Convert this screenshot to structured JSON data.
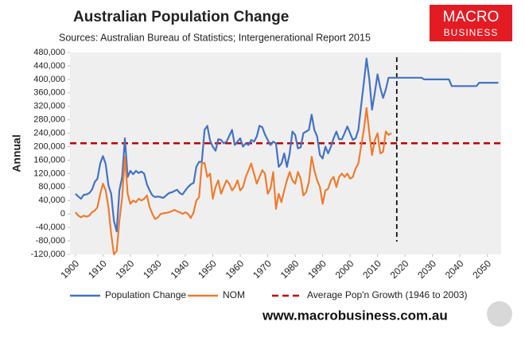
{
  "chart_data": {
    "type": "line",
    "title": "Australian Population Change",
    "subtitle": "Sources: Australian Bureau of Statistics; Intergenerational Report 2015",
    "y_label": "Annual",
    "logo": {
      "line1": "MACRO",
      "line2": "BUSINESS"
    },
    "website": "www.macrobusiness.com.au",
    "x": [
      1900,
      1901,
      1902,
      1903,
      1904,
      1905,
      1906,
      1907,
      1908,
      1909,
      1910,
      1911,
      1912,
      1913,
      1914,
      1915,
      1916,
      1917,
      1918,
      1919,
      1920,
      1921,
      1922,
      1923,
      1924,
      1925,
      1926,
      1927,
      1928,
      1929,
      1930,
      1931,
      1932,
      1933,
      1934,
      1935,
      1936,
      1937,
      1938,
      1939,
      1940,
      1941,
      1942,
      1943,
      1944,
      1945,
      1946,
      1947,
      1948,
      1949,
      1950,
      1951,
      1952,
      1953,
      1954,
      1955,
      1956,
      1957,
      1958,
      1959,
      1960,
      1961,
      1962,
      1963,
      1964,
      1965,
      1966,
      1967,
      1968,
      1969,
      1970,
      1971,
      1972,
      1973,
      1974,
      1975,
      1976,
      1977,
      1978,
      1979,
      1980,
      1981,
      1982,
      1983,
      1984,
      1985,
      1986,
      1987,
      1988,
      1989,
      1990,
      1991,
      1992,
      1993,
      1994,
      1995,
      1996,
      1997,
      1998,
      1999,
      2000,
      2001,
      2002,
      2003,
      2004,
      2005,
      2006,
      2007,
      2008,
      2009,
      2010,
      2011,
      2012,
      2013,
      2014,
      2015,
      2016,
      2017,
      2018,
      2019,
      2020,
      2021,
      2022,
      2023,
      2024,
      2025,
      2026,
      2027,
      2028,
      2029,
      2030,
      2031,
      2032,
      2033,
      2034,
      2035,
      2036,
      2037,
      2038,
      2039,
      2040,
      2041,
      2042,
      2043,
      2044,
      2045,
      2046,
      2047,
      2048,
      2049,
      2050,
      2051,
      2052,
      2053,
      2054
    ],
    "series": [
      {
        "name": "Population Change",
        "color": "#4472c4",
        "values": [
          60000,
          52000,
          45000,
          57000,
          58000,
          62000,
          72000,
          95000,
          105000,
          150000,
          172000,
          148000,
          85000,
          60000,
          -20000,
          -52000,
          70000,
          110000,
          225000,
          110000,
          128000,
          118000,
          128000,
          122000,
          126000,
          120000,
          88000,
          70000,
          55000,
          50000,
          52000,
          50000,
          48000,
          55000,
          62000,
          64000,
          68000,
          72000,
          62000,
          58000,
          70000,
          80000,
          88000,
          92000,
          140000,
          155000,
          155000,
          250000,
          262000,
          218000,
          200000,
          188000,
          222000,
          220000,
          210000,
          215000,
          232000,
          250000,
          205000,
          215000,
          225000,
          200000,
          210000,
          205000,
          220000,
          215000,
          230000,
          262000,
          258000,
          236000,
          220000,
          205000,
          215000,
          210000,
          140000,
          150000,
          180000,
          140000,
          180000,
          245000,
          235000,
          195000,
          198000,
          240000,
          245000,
          250000,
          295000,
          250000,
          230000,
          175000,
          165000,
          200000,
          180000,
          200000,
          225000,
          245000,
          222000,
          222000,
          240000,
          260000,
          240000,
          220000,
          225000,
          250000,
          320000,
          390000,
          462000,
          400000,
          310000,
          360000,
          415000,
          375000,
          345000,
          370000,
          405000,
          405000,
          405000,
          405000,
          405000,
          405000,
          405000,
          405000,
          405000,
          405000,
          405000,
          405000,
          405000,
          400000,
          400000,
          400000,
          400000,
          400000,
          400000,
          400000,
          400000,
          400000,
          400000,
          380000,
          380000,
          380000,
          380000,
          380000,
          380000,
          380000,
          380000,
          380000,
          380000,
          390000,
          390000,
          390000,
          390000,
          390000,
          390000,
          390000,
          390000
        ]
      },
      {
        "name": "NOM",
        "color": "#ed7d31",
        "values": [
          5000,
          -5000,
          -10000,
          -5000,
          -8000,
          -5000,
          5000,
          10000,
          20000,
          60000,
          90000,
          70000,
          20000,
          -60000,
          -120000,
          -110000,
          -20000,
          50000,
          170000,
          60000,
          30000,
          40000,
          35000,
          45000,
          40000,
          45000,
          55000,
          20000,
          0,
          -15000,
          -10000,
          0,
          2000,
          3000,
          5000,
          8000,
          12000,
          8000,
          5000,
          0,
          5000,
          0,
          -12000,
          5000,
          40000,
          50000,
          150000,
          152000,
          110000,
          120000,
          45000,
          80000,
          100000,
          60000,
          80000,
          100000,
          90000,
          70000,
          80000,
          100000,
          70000,
          80000,
          110000,
          130000,
          150000,
          120000,
          90000,
          110000,
          130000,
          120000,
          60000,
          75000,
          125000,
          15000,
          60000,
          35000,
          70000,
          100000,
          125000,
          100000,
          90000,
          125000,
          105000,
          55000,
          65000,
          95000,
          170000,
          130000,
          100000,
          80000,
          30000,
          70000,
          75000,
          100000,
          110000,
          80000,
          110000,
          120000,
          110000,
          120000,
          105000,
          110000,
          135000,
          150000,
          200000,
          250000,
          315000,
          240000,
          175000,
          220000,
          240000,
          180000,
          185000,
          245000,
          235000,
          240000,
          null,
          null,
          null,
          null,
          null,
          null,
          null,
          null,
          null,
          null,
          null,
          null,
          null,
          null,
          null,
          null,
          null,
          null,
          null,
          null,
          null,
          null,
          null,
          null,
          null,
          null,
          null,
          null,
          null,
          null,
          null,
          null,
          null,
          null,
          null,
          null,
          null,
          null,
          null
        ]
      }
    ],
    "reference_line": {
      "name": "Average Pop'n Growth (1946 to 2003)",
      "value": 210000,
      "color": "#c00000"
    },
    "vline": 2017,
    "xlim": [
      1898,
      2055
    ],
    "xticks": [
      1900,
      1910,
      1920,
      1930,
      1940,
      1950,
      1960,
      1970,
      1980,
      1990,
      2000,
      2010,
      2020,
      2030,
      2040,
      2050
    ],
    "ylim": [
      -120000,
      480000
    ],
    "yticks": [
      {
        "value": -120000,
        "label": "-120,000"
      },
      {
        "value": -80000,
        "label": "-80,000"
      },
      {
        "value": -40000,
        "label": "-40,000"
      },
      0,
      {
        "value": 40000,
        "label": "40,000"
      },
      {
        "value": 80000,
        "label": "80,000"
      },
      {
        "value": 120000,
        "label": "120,000"
      },
      {
        "value": 160000,
        "label": "160,000"
      },
      {
        "value": 200000,
        "label": "200,000"
      },
      {
        "value": 240000,
        "label": "240,000"
      },
      {
        "value": 280000,
        "label": "280,000"
      },
      {
        "value": 320000,
        "label": "320,000"
      },
      {
        "value": 360000,
        "label": "360,000"
      },
      {
        "value": 400000,
        "label": "400,000"
      },
      {
        "value": 440000,
        "label": "440,000"
      },
      {
        "value": 480000,
        "label": "480,000"
      }
    ],
    "grid": false
  }
}
